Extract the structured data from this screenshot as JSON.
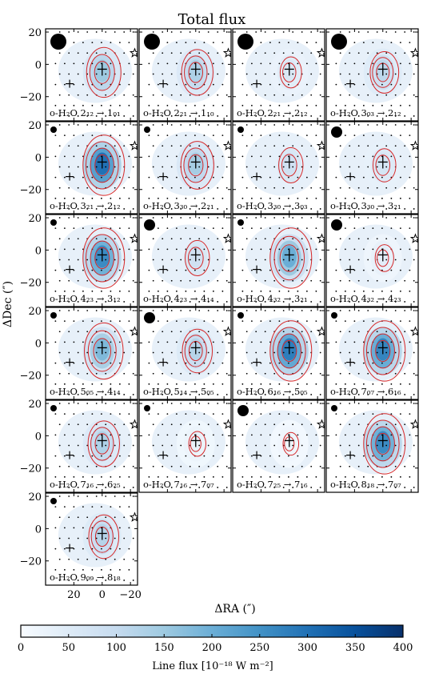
{
  "chart_data": {
    "type": "heatmap",
    "title": "Total flux",
    "xlabel": "ΔRA (″)",
    "ylabel": "ΔDec (″)",
    "xlim": [
      40,
      -25
    ],
    "ylim": [
      -35,
      22
    ],
    "xticks": [
      20,
      0,
      -20
    ],
    "yticks": [
      20,
      0,
      -20
    ],
    "colorbar": {
      "label": "Line flux [10⁻¹⁸ W m⁻²]",
      "min": 0,
      "max": 400,
      "ticks": [
        0,
        50,
        100,
        150,
        200,
        250,
        300,
        350,
        400
      ],
      "colormap": "Blues"
    },
    "grid": false,
    "panels": [
      {
        "species": "o-H₂O",
        "upper": "2₁₂",
        "lower": "1₀₁",
        "peak_flux": 150,
        "beam": "large"
      },
      {
        "species": "o-H₂O",
        "upper": "2₂₁",
        "lower": "1₁₀",
        "peak_flux": 130,
        "beam": "large"
      },
      {
        "species": "o-H₂O",
        "upper": "2₂₁",
        "lower": "2₁₂",
        "peak_flux": 60,
        "beam": "large"
      },
      {
        "species": "o-H₂O",
        "upper": "3₀₃",
        "lower": "2₁₂",
        "peak_flux": 110,
        "beam": "large"
      },
      {
        "species": "o-H₂O",
        "upper": "3₂₁",
        "lower": "2₁₂",
        "peak_flux": 300,
        "beam": "small"
      },
      {
        "species": "o-H₂O",
        "upper": "3₃₀",
        "lower": "2₂₁",
        "peak_flux": 140,
        "beam": "small"
      },
      {
        "species": "o-H₂O",
        "upper": "3₃₀",
        "lower": "3₀₃",
        "peak_flux": 80,
        "beam": "small"
      },
      {
        "species": "o-H₂O",
        "upper": "3₃₀",
        "lower": "3₂₁",
        "peak_flux": 70,
        "beam": "medium"
      },
      {
        "species": "o-H₂O",
        "upper": "4₂₃",
        "lower": "3₁₂",
        "peak_flux": 260,
        "beam": "small"
      },
      {
        "species": "o-H₂O",
        "upper": "4₂₃",
        "lower": "4₁₄",
        "peak_flux": 80,
        "beam": "medium"
      },
      {
        "species": "o-H₂O",
        "upper": "4₃₂",
        "lower": "3₂₁",
        "peak_flux": 200,
        "beam": "small"
      },
      {
        "species": "o-H₂O",
        "upper": "4₃₂",
        "lower": "4₂₃",
        "peak_flux": 40,
        "beam": "medium"
      },
      {
        "species": "o-H₂O",
        "upper": "5₀₅",
        "lower": "4₁₄",
        "peak_flux": 180,
        "beam": "small"
      },
      {
        "species": "o-H₂O",
        "upper": "5₁₄",
        "lower": "5₀₅",
        "peak_flux": 120,
        "beam": "medium"
      },
      {
        "species": "o-H₂O",
        "upper": "6₁₆",
        "lower": "5₀₅",
        "peak_flux": 280,
        "beam": "small"
      },
      {
        "species": "o-H₂O",
        "upper": "7₀₇",
        "lower": "6₁₆",
        "peak_flux": 270,
        "beam": "small"
      },
      {
        "species": "o-H₂O",
        "upper": "7₁₆",
        "lower": "6₂₅",
        "peak_flux": 130,
        "beam": "small"
      },
      {
        "species": "o-H₂O",
        "upper": "7₁₆",
        "lower": "7₀₇",
        "peak_flux": 30,
        "beam": "small"
      },
      {
        "species": "o-H₂O",
        "upper": "7₂₅",
        "lower": "7₁₆",
        "peak_flux": 20,
        "beam": "medium"
      },
      {
        "species": "o-H₂O",
        "upper": "8₁₈",
        "lower": "7₀₇",
        "peak_flux": 260,
        "beam": "small"
      },
      {
        "species": "o-H₂O",
        "upper": "9₀₉",
        "lower": "8₁₈",
        "peak_flux": 120,
        "beam": "small"
      }
    ],
    "markers": {
      "source_a": {
        "x": 0,
        "y": -3,
        "symbol": "plus"
      },
      "source_b": {
        "x": 23,
        "y": -12,
        "symbol": "plus"
      },
      "star": {
        "x": -23,
        "y": 7,
        "symbol": "star"
      }
    }
  }
}
